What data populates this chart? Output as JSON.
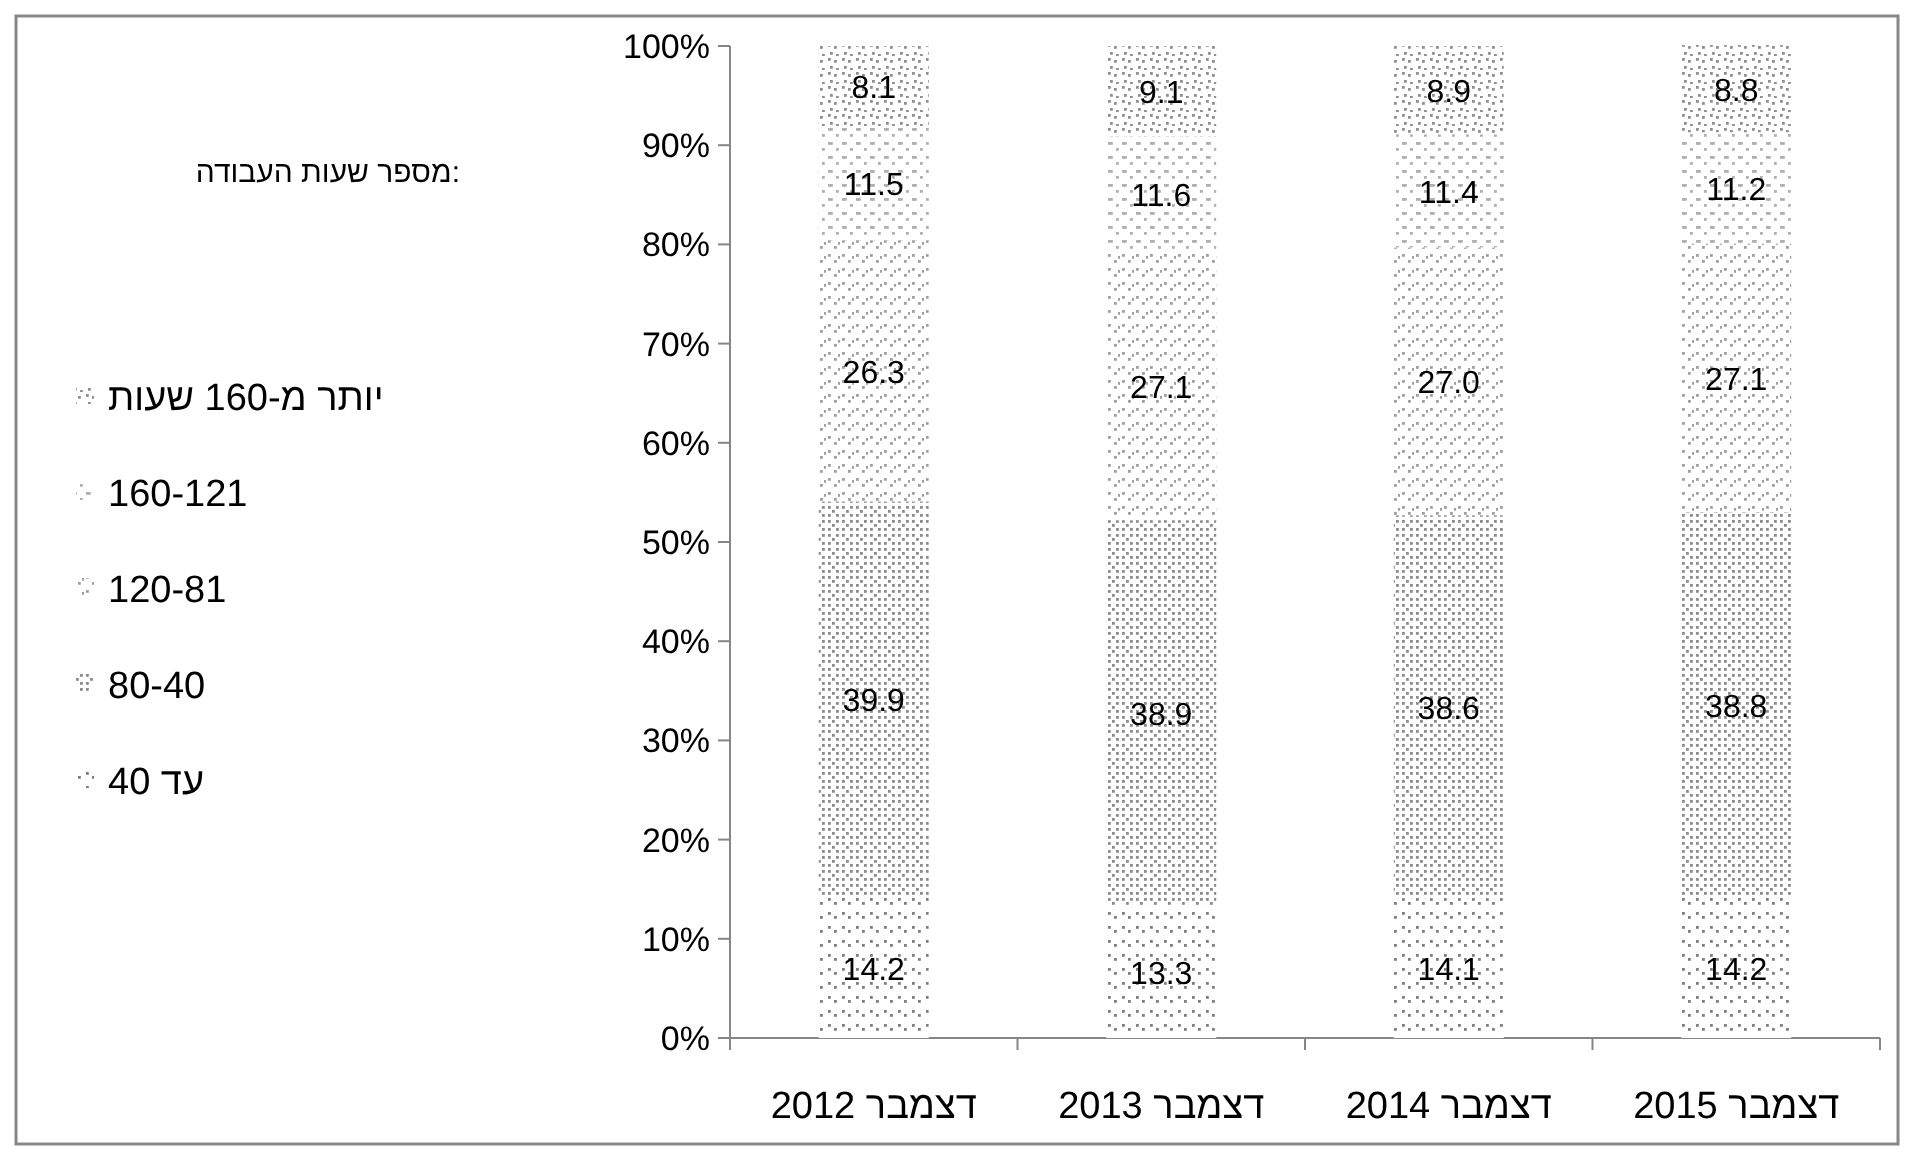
{
  "chart_data": {
    "type": "bar",
    "stacked": true,
    "legend_title": "מספר שעות העבודה:",
    "legend": "left",
    "categories": [
      "דצמבר 2012",
      "דצמבר 2013",
      "דצמבר 2014",
      "דצמבר 2015"
    ],
    "ylim": [
      0,
      100
    ],
    "yticks": [
      {
        "value": 0,
        "label": "0%"
      },
      {
        "value": 10,
        "label": "10%"
      },
      {
        "value": 20,
        "label": "20%"
      },
      {
        "value": 30,
        "label": "30%"
      },
      {
        "value": 40,
        "label": "40%"
      },
      {
        "value": 50,
        "label": "50%"
      },
      {
        "value": 60,
        "label": "60%"
      },
      {
        "value": 70,
        "label": "70%"
      },
      {
        "value": 80,
        "label": "80%"
      },
      {
        "value": 90,
        "label": "90%"
      },
      {
        "value": 100,
        "label": "100%"
      }
    ],
    "grid": false,
    "series": [
      {
        "name": "עד 40",
        "color": "#7f7f7f",
        "values": [
          14.2,
          13.3,
          14.1,
          14.2
        ],
        "value_labels": [
          "14.2",
          "13.3",
          "14.1",
          "14.2"
        ]
      },
      {
        "name": "80-40",
        "color": "#8c8c8c",
        "values": [
          39.9,
          38.9,
          38.6,
          38.8
        ],
        "value_labels": [
          "39.9",
          "38.9",
          "38.6",
          "38.8"
        ]
      },
      {
        "name": "120-81",
        "color": "#a0a0a0",
        "values": [
          26.3,
          27.1,
          27.0,
          27.1
        ],
        "value_labels": [
          "26.3",
          "27.1",
          "27.0",
          "27.1"
        ]
      },
      {
        "name": "160-121",
        "color": "#b0b0b0",
        "values": [
          11.5,
          11.6,
          11.4,
          11.2
        ],
        "value_labels": [
          "11.5",
          "11.6",
          "11.4",
          "11.2"
        ]
      },
      {
        "name": "יותר מ-160 שעות",
        "color": "#909090",
        "values": [
          8.1,
          9.1,
          8.9,
          8.8
        ],
        "value_labels": [
          "8.1",
          "9.1",
          "8.9",
          "8.8"
        ]
      }
    ]
  }
}
